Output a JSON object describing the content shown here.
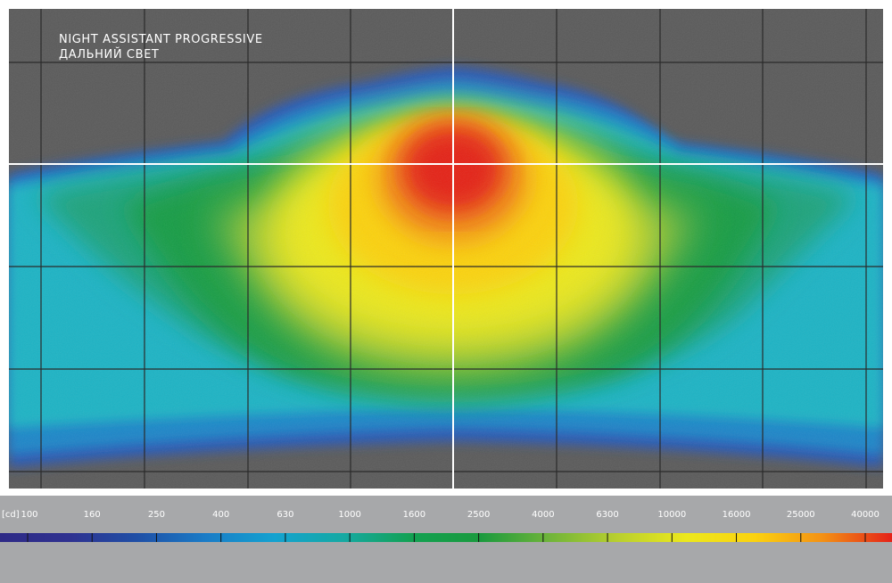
{
  "title": {
    "line1": "NIGHT ASSISTANT PROGRESSIVE",
    "line2": "ДАЛЬНИЙ СВЕТ"
  },
  "chart_data": {
    "type": "heatmap",
    "title": "NIGHT ASSISTANT PROGRESSIVE — ДАЛЬНИЙ СВЕТ",
    "unit": "[cd]",
    "scale_values": [
      100,
      160,
      250,
      400,
      630,
      1000,
      1600,
      2500,
      4000,
      6300,
      10000,
      16000,
      25000,
      40000
    ],
    "scale_labels": [
      "100",
      "160",
      "250",
      "400",
      "630",
      "1000",
      "1600",
      "2500",
      "4000",
      "6300",
      "10000",
      "16000",
      "25000",
      "40000"
    ],
    "scale_colors": [
      "#2e2a86",
      "#2f3190",
      "#1f4fa6",
      "#1a7cc7",
      "#13a2d0",
      "#15a9a3",
      "#12a152",
      "#1a9a3e",
      "#6fb43a",
      "#b9cf2e",
      "#ece81c",
      "#fbd20f",
      "#f39015",
      "#e42218"
    ],
    "background_color": "#5a5a5a",
    "grid": true,
    "reference_lines": [
      "horizontal",
      "vertical"
    ]
  }
}
